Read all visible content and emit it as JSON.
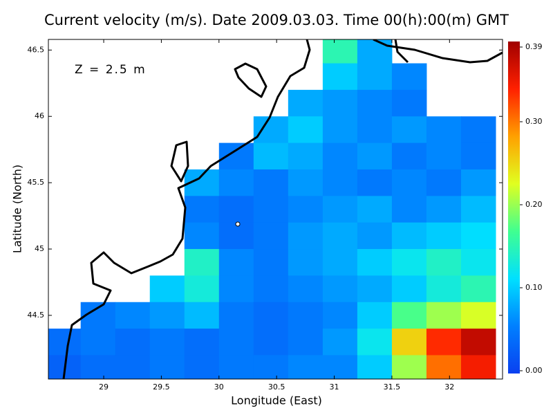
{
  "chart_data": {
    "type": "heatmap",
    "title": "Current velocity (m/s). Date 2009.03.03. Time 00(h):00(m) GMT",
    "annotation": "Z = 2.5 m",
    "x_label": "Longitude (East)",
    "y_label": "Latitude (North)",
    "xlim": [
      28.52,
      32.46
    ],
    "ylim": [
      44.02,
      46.58
    ],
    "xticks": [
      29,
      29.5,
      30,
      30.5,
      31,
      31.5,
      32
    ],
    "yticks": [
      44.5,
      45,
      45.5,
      46,
      46.5
    ],
    "x": [
      28.65,
      28.95,
      29.25,
      29.55,
      29.85,
      30.15,
      30.45,
      30.75,
      31.05,
      31.35,
      31.65,
      31.95,
      32.25
    ],
    "y": [
      46.5,
      46.3,
      46.1,
      45.9,
      45.7,
      45.5,
      45.3,
      45.1,
      44.9,
      44.7,
      44.5,
      44.3,
      44.1
    ],
    "values": [
      [
        null,
        null,
        null,
        null,
        null,
        null,
        null,
        null,
        0.15,
        0.08,
        null,
        null,
        null
      ],
      [
        null,
        null,
        null,
        null,
        null,
        null,
        null,
        null,
        0.1,
        0.08,
        0.06,
        null,
        null
      ],
      [
        null,
        null,
        null,
        null,
        null,
        null,
        null,
        0.08,
        0.07,
        0.06,
        0.05,
        null,
        null
      ],
      [
        null,
        null,
        null,
        null,
        null,
        null,
        0.08,
        0.1,
        0.07,
        0.06,
        0.07,
        0.06,
        0.05
      ],
      [
        null,
        null,
        null,
        null,
        null,
        0.05,
        0.09,
        0.08,
        0.06,
        0.07,
        0.05,
        0.06,
        0.05
      ],
      [
        null,
        null,
        null,
        null,
        0.08,
        0.06,
        0.05,
        0.07,
        0.06,
        0.05,
        0.06,
        0.05,
        0.07
      ],
      [
        null,
        null,
        null,
        null,
        0.05,
        0.04,
        0.05,
        0.06,
        0.07,
        0.08,
        0.06,
        0.07,
        0.09
      ],
      [
        null,
        null,
        null,
        null,
        0.06,
        0.04,
        0.05,
        0.07,
        0.08,
        0.07,
        0.09,
        0.1,
        0.11
      ],
      [
        null,
        null,
        null,
        null,
        0.14,
        0.06,
        0.05,
        0.07,
        0.08,
        0.1,
        0.12,
        0.14,
        0.12
      ],
      [
        null,
        null,
        null,
        0.1,
        0.13,
        0.06,
        0.05,
        0.06,
        0.07,
        0.08,
        0.1,
        0.13,
        0.15
      ],
      [
        null,
        0.05,
        0.06,
        0.07,
        0.09,
        0.05,
        0.04,
        0.05,
        0.06,
        0.1,
        0.17,
        0.2,
        0.22
      ],
      [
        0.04,
        0.05,
        0.04,
        0.05,
        0.04,
        0.05,
        0.04,
        0.05,
        0.07,
        0.12,
        0.25,
        0.33,
        0.37
      ],
      [
        0.03,
        0.04,
        0.04,
        0.05,
        0.04,
        0.05,
        0.05,
        0.06,
        0.06,
        0.1,
        0.2,
        0.3,
        0.34
      ]
    ],
    "clim": [
      0,
      0.39
    ],
    "cticks": [
      {
        "value": 0,
        "label": "0.00"
      },
      {
        "value": 0.1,
        "label": "0.10"
      },
      {
        "value": 0.2,
        "label": "0.20"
      },
      {
        "value": 0.3,
        "label": "0.30"
      },
      0.39
    ],
    "colormap": [
      "#0a40f0",
      "#0080ff",
      "#00e0ff",
      "#40ff90",
      "#e0ff20",
      "#ffa000",
      "#ff2000",
      "#a00000"
    ]
  }
}
